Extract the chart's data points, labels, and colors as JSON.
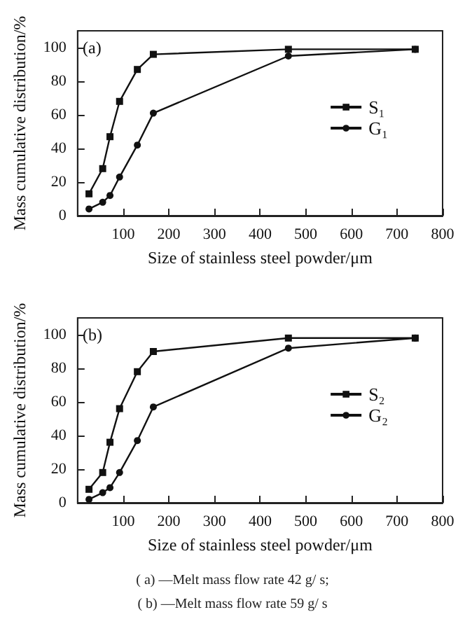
{
  "chart_data": [
    {
      "type": "line",
      "xlabel": "Size of stainless steel powder/μm",
      "ylabel": "Mass cumulative distribution/%",
      "annotations": [
        "(a)"
      ],
      "x": [
        25,
        55,
        71,
        92,
        131,
        166,
        462,
        740
      ],
      "series": [
        {
          "name": "S₁",
          "color": "#111111",
          "marker": "square",
          "values": [
            13,
            28,
            47,
            68,
            87,
            96,
            99,
            99
          ]
        },
        {
          "name": "G₁",
          "color": "#111111",
          "marker": "circle",
          "values": [
            4,
            8,
            12,
            23,
            42,
            61,
            95,
            99
          ]
        }
      ],
      "xlim": [
        0,
        800
      ],
      "xticks": [
        {
          "value": 0,
          "label": null
        },
        100,
        200,
        300,
        400,
        500,
        600,
        700,
        800
      ],
      "ylim": [
        0,
        110
      ],
      "yticks": [
        0,
        20,
        40,
        60,
        80,
        100
      ],
      "legend": "right",
      "grid": false,
      "line_style": "solid"
    },
    {
      "type": "line",
      "xlabel": "Size of stainless steel powder/μm",
      "ylabel": "Mass cumulative distribution/%",
      "annotations": [
        "(b)",
        "( a) —Melt mass flow rate 42 g/ s;",
        "( b) —Melt mass flow rate 59 g/ s"
      ],
      "x": [
        25,
        55,
        71,
        92,
        131,
        166,
        462,
        740
      ],
      "series": [
        {
          "name": "S₂",
          "color": "#111111",
          "marker": "square",
          "values": [
            8,
            18,
            36,
            56,
            78,
            90,
            98,
            98
          ]
        },
        {
          "name": "G₂",
          "color": "#111111",
          "marker": "circle",
          "values": [
            2,
            6,
            9,
            18,
            37,
            57,
            92,
            98
          ]
        }
      ],
      "xlim": [
        0,
        800
      ],
      "xticks": [
        {
          "value": 0,
          "label": null
        },
        100,
        200,
        300,
        400,
        500,
        600,
        700,
        800
      ],
      "ylim": [
        0,
        110
      ],
      "yticks": [
        0,
        20,
        40,
        60,
        80,
        100
      ],
      "legend": "right",
      "grid": false,
      "line_style": "solid"
    }
  ]
}
